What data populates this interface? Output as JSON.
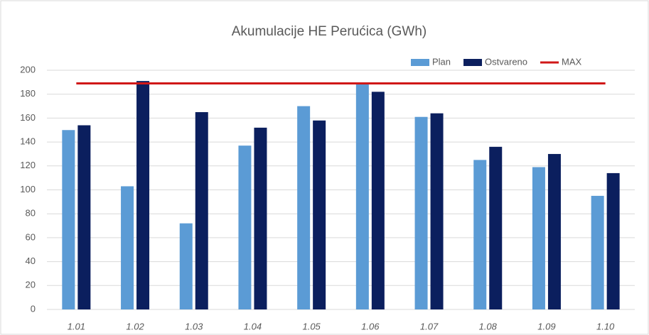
{
  "chart_data": {
    "type": "bar",
    "title": "Akumulacije HE Perućica   (GWh)",
    "categories": [
      "1.01",
      "1.02",
      "1.03",
      "1.04",
      "1.05",
      "1.06",
      "1.07",
      "1.08",
      "1.09",
      "1.10"
    ],
    "series": [
      {
        "name": "Plan",
        "color": "#5b9bd5",
        "type": "bar",
        "values": [
          150,
          103,
          72,
          137,
          170,
          189,
          161,
          125,
          119,
          95
        ]
      },
      {
        "name": "Ostvareno",
        "color": "#0b1f5e",
        "type": "bar",
        "values": [
          154,
          191,
          165,
          152,
          158,
          182,
          164,
          136,
          130,
          114
        ]
      },
      {
        "name": "MAX",
        "color": "#d01818",
        "type": "line",
        "values": [
          189,
          189,
          189,
          189,
          189,
          189,
          189,
          189,
          189,
          189
        ]
      }
    ],
    "ylim": [
      0,
      200
    ],
    "yticks": [
      0,
      20,
      40,
      60,
      80,
      100,
      120,
      140,
      160,
      180,
      200
    ],
    "grid": true,
    "legend": "top-right"
  }
}
